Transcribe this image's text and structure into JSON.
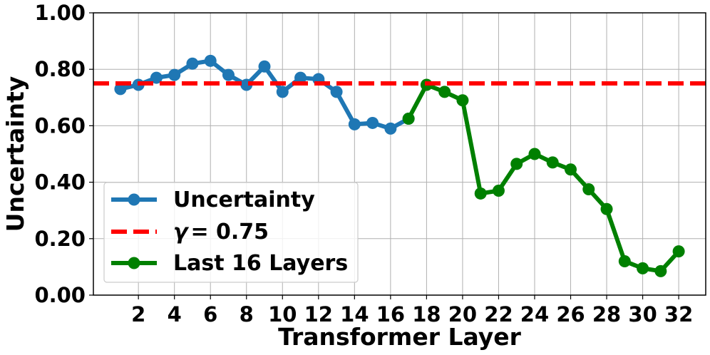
{
  "chart_data": {
    "type": "line",
    "xlabel": "Transformer Layer",
    "ylabel": "Uncertainty",
    "xlim": [
      -0.5,
      33.5
    ],
    "ylim": [
      0.0,
      1.0
    ],
    "xticks": [
      2,
      4,
      6,
      8,
      10,
      12,
      14,
      16,
      18,
      20,
      22,
      24,
      26,
      28,
      30,
      32
    ],
    "yticks": [
      0.0,
      0.2,
      0.4,
      0.6,
      0.8,
      1.0
    ],
    "ytick_labels": [
      "0.00",
      "0.20",
      "0.40",
      "0.60",
      "0.80",
      "1.00"
    ],
    "grid": true,
    "legend_position": "lower-left",
    "series": [
      {
        "name": "Uncertainty",
        "color": "#1f77b4",
        "marker": "circle",
        "x": [
          1,
          2,
          3,
          4,
          5,
          6,
          7,
          8,
          9,
          10,
          11,
          12,
          13,
          14,
          15,
          16,
          17
        ],
        "y": [
          0.73,
          0.745,
          0.77,
          0.78,
          0.82,
          0.83,
          0.78,
          0.745,
          0.81,
          0.72,
          0.77,
          0.765,
          0.72,
          0.605,
          0.61,
          0.59,
          0.625
        ]
      },
      {
        "name": "Last 16 Layers",
        "color": "#008000",
        "marker": "circle",
        "x": [
          17,
          18,
          19,
          20,
          21,
          22,
          23,
          24,
          25,
          26,
          27,
          28,
          29,
          30,
          31,
          32
        ],
        "y": [
          0.625,
          0.745,
          0.72,
          0.69,
          0.36,
          0.37,
          0.465,
          0.5,
          0.47,
          0.445,
          0.375,
          0.305,
          0.12,
          0.095,
          0.085,
          0.155
        ]
      }
    ],
    "reference_line": {
      "name": "γ = 0.75",
      "legend_label_prefix": "γ",
      "legend_label_value": "= 0.75",
      "value": 0.75,
      "color": "#ff0000",
      "style": "dashed"
    }
  }
}
